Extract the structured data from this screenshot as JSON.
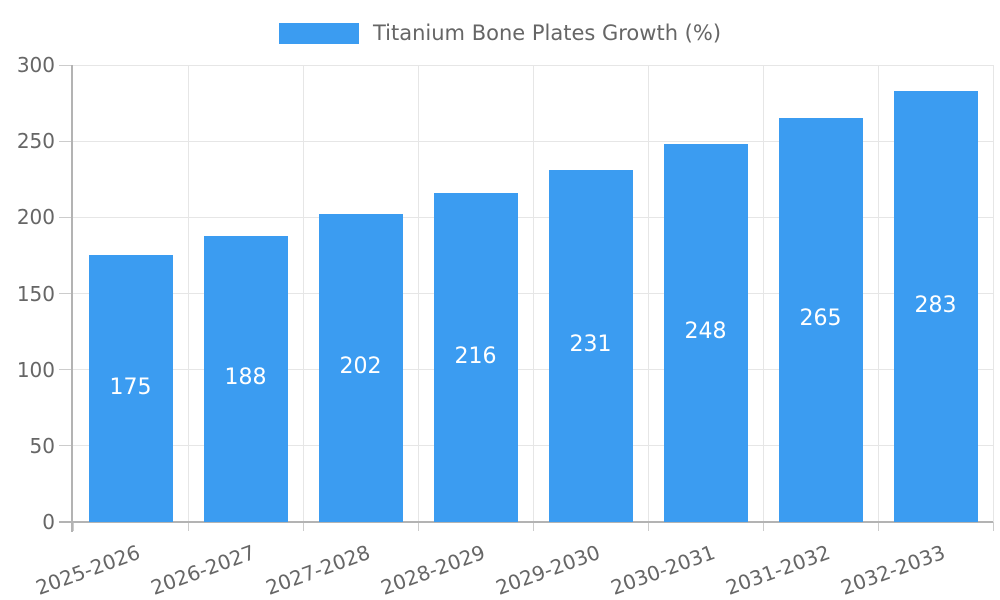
{
  "chart_data": {
    "type": "bar",
    "title": "",
    "legend_label": "Titanium Bone Plates Growth (%)",
    "legend_position": "top",
    "categories": [
      "2025-2026",
      "2026-2027",
      "2027-2028",
      "2028-2029",
      "2029-2030",
      "2030-2031",
      "2031-2032",
      "2032-2033"
    ],
    "series": [
      {
        "name": "Titanium Bone Plates Growth (%)",
        "values": [
          175,
          188,
          202,
          216,
          231,
          248,
          265,
          283
        ]
      }
    ],
    "ylim": [
      0,
      300
    ],
    "yticks": [
      0,
      50,
      100,
      150,
      200,
      250,
      300
    ],
    "grid": true,
    "x_label_rotation_deg": -20,
    "value_labels_shown": true,
    "colors": {
      "bar": "#3b9cf1",
      "axis": "#b3b3b3",
      "grid": "#e6e6e6",
      "tick_stub": "#cccccc",
      "tick_text": "#666666",
      "legend_text": "#666666",
      "value_text": "#ffffff",
      "background": "#ffffff"
    }
  }
}
